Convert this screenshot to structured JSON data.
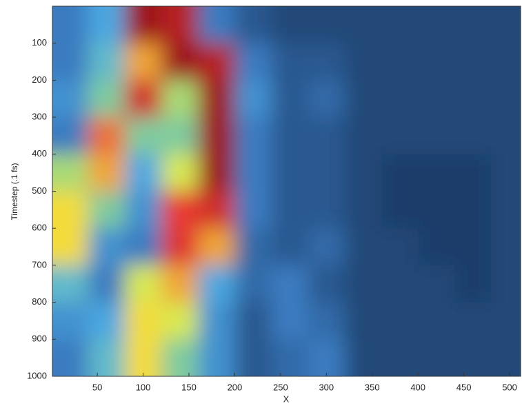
{
  "chart_data": {
    "type": "heatmap",
    "xlabel": "X",
    "ylabel": "Timestep (.1 fs)",
    "colormap": "jet",
    "xlim": [
      1,
      512
    ],
    "ylim": [
      0,
      1000
    ],
    "xticks": [
      50,
      100,
      150,
      200,
      250,
      300,
      350,
      400,
      450,
      500
    ],
    "yticks": [
      100,
      200,
      300,
      400,
      500,
      600,
      700,
      800,
      900,
      1000
    ],
    "x": [
      20,
      60,
      100,
      140,
      180,
      220,
      260,
      300,
      340,
      380,
      420,
      460,
      500
    ],
    "y": [
      50,
      150,
      250,
      350,
      450,
      550,
      650,
      750,
      850,
      950
    ],
    "z": [
      [
        0.3,
        0.4,
        0.95,
        0.9,
        0.3,
        0.2,
        0.15,
        0.15,
        0.15,
        0.15,
        0.15,
        0.15,
        0.15
      ],
      [
        0.3,
        0.45,
        0.7,
        0.95,
        0.9,
        0.3,
        0.2,
        0.2,
        0.15,
        0.15,
        0.15,
        0.15,
        0.15
      ],
      [
        0.35,
        0.5,
        0.85,
        0.55,
        0.95,
        0.35,
        0.2,
        0.25,
        0.15,
        0.15,
        0.15,
        0.15,
        0.15
      ],
      [
        0.3,
        0.75,
        0.5,
        0.5,
        0.95,
        0.3,
        0.2,
        0.2,
        0.15,
        0.15,
        0.15,
        0.15,
        0.15
      ],
      [
        0.55,
        0.7,
        0.4,
        0.6,
        0.95,
        0.3,
        0.2,
        0.2,
        0.15,
        0.12,
        0.12,
        0.12,
        0.15
      ],
      [
        0.65,
        0.5,
        0.35,
        0.8,
        0.85,
        0.3,
        0.2,
        0.2,
        0.15,
        0.12,
        0.12,
        0.12,
        0.15
      ],
      [
        0.65,
        0.35,
        0.3,
        0.82,
        0.7,
        0.25,
        0.2,
        0.25,
        0.15,
        0.15,
        0.12,
        0.12,
        0.15
      ],
      [
        0.45,
        0.3,
        0.6,
        0.7,
        0.4,
        0.25,
        0.3,
        0.2,
        0.15,
        0.15,
        0.15,
        0.12,
        0.15
      ],
      [
        0.35,
        0.4,
        0.65,
        0.6,
        0.35,
        0.2,
        0.3,
        0.25,
        0.15,
        0.15,
        0.15,
        0.15,
        0.15
      ],
      [
        0.3,
        0.45,
        0.65,
        0.5,
        0.35,
        0.2,
        0.25,
        0.3,
        0.15,
        0.15,
        0.15,
        0.15,
        0.15
      ]
    ]
  }
}
